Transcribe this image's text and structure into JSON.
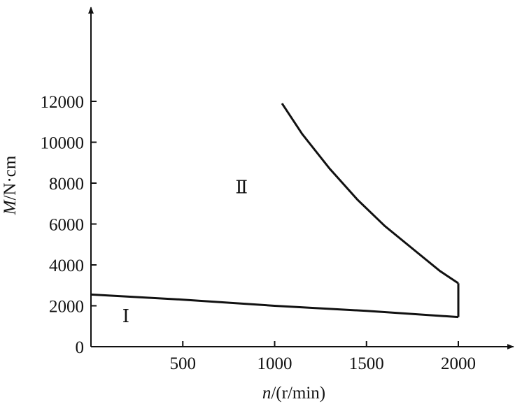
{
  "chart_data": {
    "type": "line",
    "title": "",
    "xlabel": "n/(r/min)",
    "ylabel": "M/N·cm",
    "xlim": [
      0,
      2300
    ],
    "ylim": [
      0,
      16600
    ],
    "x_ticks": [
      0,
      500,
      1000,
      1500,
      2000
    ],
    "x_tick_labels": [
      "",
      "500",
      "1000",
      "1500",
      "2000"
    ],
    "y_ticks": [
      0,
      2000,
      4000,
      6000,
      8000,
      10000,
      12000
    ],
    "y_tick_labels": [
      "0",
      "2000",
      "4000",
      "6000",
      "8000",
      "10000",
      "12000"
    ],
    "grid": false,
    "legend": "none",
    "series": [
      {
        "x": [
          0,
          500,
          1000,
          1500,
          2000
        ],
        "y": [
          2550,
          2300,
          2000,
          1750,
          1450
        ]
      },
      {
        "x": [
          1040,
          1150,
          1300,
          1450,
          1600,
          1750,
          1900,
          2000
        ],
        "y": [
          11900,
          10400,
          8700,
          7200,
          5900,
          4800,
          3700,
          3100
        ]
      },
      {
        "x": [
          2000,
          2000
        ],
        "y": [
          1450,
          3100
        ]
      }
    ],
    "annotations": [
      {
        "text": "Ⅰ",
        "x": 190,
        "y": 1200
      },
      {
        "text": "Ⅱ",
        "x": 820,
        "y": 7500
      }
    ]
  }
}
